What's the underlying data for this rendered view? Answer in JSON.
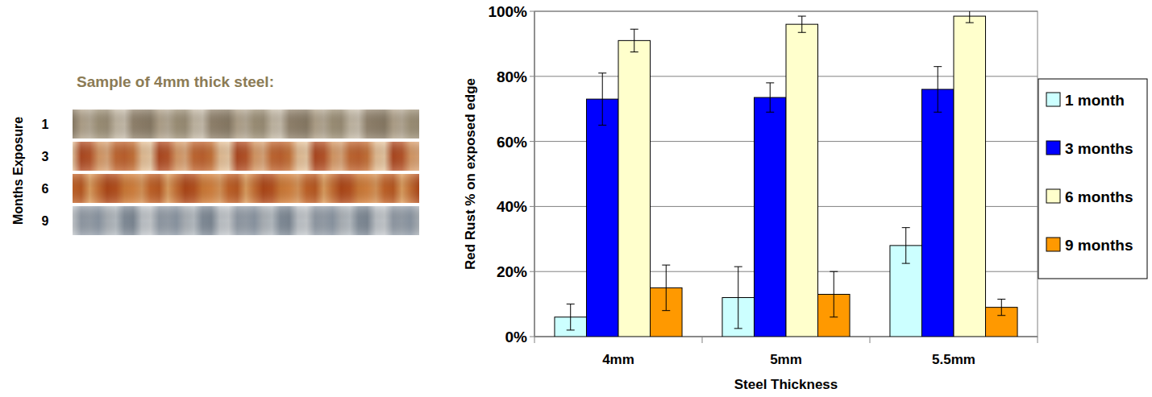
{
  "chart_data": {
    "type": "bar",
    "xlabel": "Steel Thickness",
    "ylabel": "Red Rust % on exposed edge",
    "categories": [
      "4mm",
      "5mm",
      "5.5mm"
    ],
    "series": [
      {
        "name": "1 month",
        "color": "#ccffff",
        "values": [
          6,
          12,
          28
        ],
        "errors": [
          4,
          9.5,
          5.5
        ]
      },
      {
        "name": "3 months",
        "color": "#0000ff",
        "values": [
          73,
          73.5,
          76
        ],
        "errors": [
          8,
          4.5,
          7
        ]
      },
      {
        "name": "6 months",
        "color": "#ffffcc",
        "values": [
          91,
          96,
          98.5
        ],
        "errors": [
          3.5,
          2.5,
          2
        ]
      },
      {
        "name": "9 months",
        "color": "#ff9900",
        "values": [
          15,
          13,
          9
        ],
        "errors": [
          7,
          7,
          2.5
        ]
      }
    ],
    "ylim": [
      0,
      100
    ],
    "yticks": [
      {
        "value": 0,
        "label": "0%"
      },
      {
        "value": 20,
        "label": "20%"
      },
      {
        "value": 40,
        "label": "40%"
      },
      {
        "value": 60,
        "label": "60%"
      },
      {
        "value": 80,
        "label": "80%"
      },
      {
        "value": 100,
        "label": "100%"
      }
    ],
    "grid": true,
    "legend": "right"
  },
  "samples": {
    "title": "Sample of 4mm thick steel:",
    "axis_label": "Months Exposure",
    "rows": [
      1,
      3,
      6,
      9
    ]
  }
}
